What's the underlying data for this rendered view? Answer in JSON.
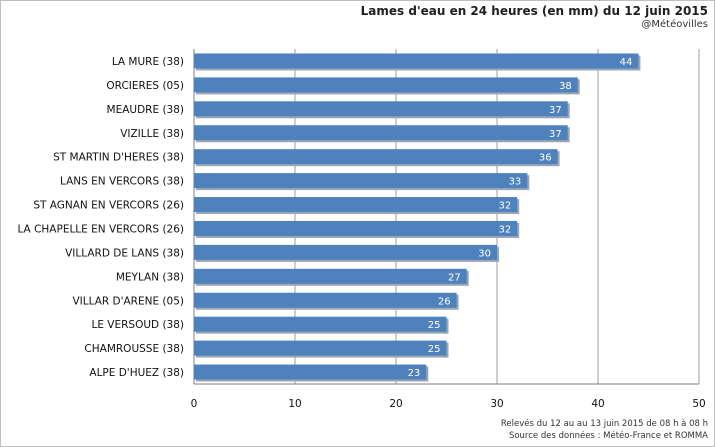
{
  "title": "Lames d'eau en 24 heures (en mm) du 12 juin 2015",
  "credit": "@Météovilles",
  "footer": {
    "line1": "Relevés du 12 au au 13 juin 2015 de 08 h à 08 h",
    "line2": "Source des données : Météo-France et ROMMA"
  },
  "colors": {
    "bar": "#4f81bd",
    "bar_shadow": "#9aa6b8",
    "grid": "#9c9c9c",
    "axis": "#7f7f7f"
  },
  "chart_data": {
    "type": "bar",
    "orientation": "horizontal",
    "categories": [
      "LA MURE (38)",
      "ORCIERES (05)",
      "MEAUDRE (38)",
      "VIZILLE (38)",
      "ST MARTIN D'HERES (38)",
      "LANS EN VERCORS (38)",
      "ST AGNAN EN VERCORS (26)",
      "LA CHAPELLE EN VERCORS (26)",
      "VILLARD DE LANS (38)",
      "MEYLAN (38)",
      "VILLAR D'ARENE (05)",
      "LE VERSOUD (38)",
      "CHAMROUSSE (38)",
      "ALPE D'HUEZ (38)"
    ],
    "values": [
      44,
      38,
      37,
      37,
      36,
      33,
      32,
      32,
      30,
      27,
      26,
      25,
      25,
      23
    ],
    "xlim": [
      0,
      50
    ],
    "xticks": [
      0,
      10,
      20,
      30,
      40,
      50
    ],
    "grid": "vertical"
  }
}
